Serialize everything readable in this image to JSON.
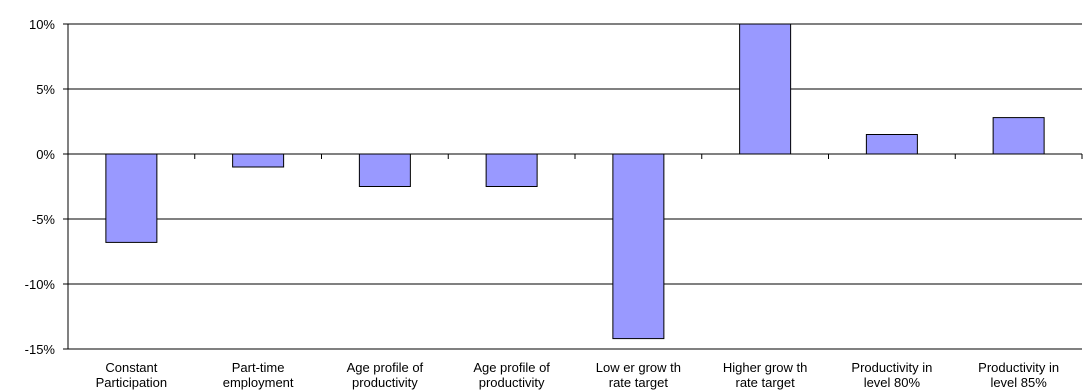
{
  "chart_data": {
    "type": "bar",
    "title": "",
    "xlabel": "",
    "ylabel": "",
    "ylim": [
      -15,
      10
    ],
    "yticks": [
      10,
      5,
      0,
      -5,
      -10,
      -15
    ],
    "ytick_labels": [
      "10%",
      "5%",
      "0%",
      "-5%",
      "-10%",
      "-15%"
    ],
    "grid": true,
    "legend": "none",
    "categories": [
      [
        "Constant",
        "Participation"
      ],
      [
        "Part-time",
        "employment"
      ],
      [
        "Age profile of",
        "productivity"
      ],
      [
        "Age profile of",
        "productivity"
      ],
      [
        "Low er grow th",
        "rate target"
      ],
      [
        "Higher grow th",
        "rate target"
      ],
      [
        "Productivity in",
        "level 80%"
      ],
      [
        "Productivity in",
        "level 85%"
      ]
    ],
    "values": [
      -6.8,
      -1.0,
      -2.5,
      -2.5,
      -14.2,
      10.0,
      1.5,
      2.8
    ],
    "colors": {
      "bar_fill": "#9999ff",
      "bar_stroke": "#000000",
      "grid": "#000000"
    }
  }
}
